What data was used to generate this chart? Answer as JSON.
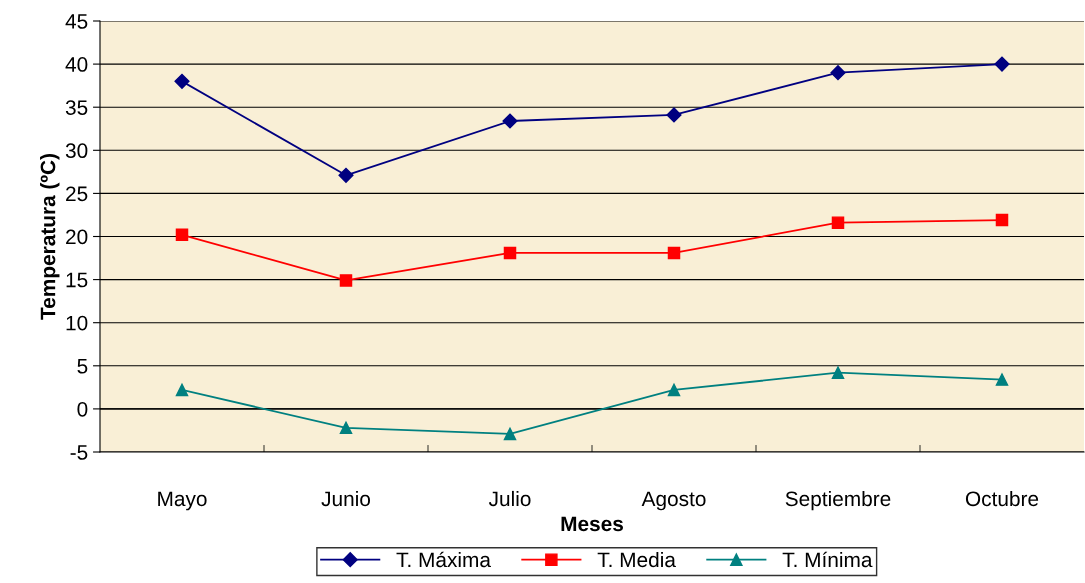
{
  "chart_data": {
    "type": "line",
    "xlabel": "Meses",
    "ylabel": "Temperatura (ºC)",
    "categories": [
      "Mayo",
      "Junio",
      "Julio",
      "Agosto",
      "Septiembre",
      "Octubre"
    ],
    "series": [
      {
        "name": "T. Máxima",
        "color": "#000080",
        "marker": "diamond",
        "values": [
          38,
          27.1,
          33.4,
          34.1,
          39,
          40
        ]
      },
      {
        "name": "T. Media",
        "color": "#ff0000",
        "marker": "square",
        "values": [
          20.2,
          14.9,
          18.1,
          18.1,
          21.6,
          21.9
        ]
      },
      {
        "name": "T. Mínima",
        "color": "#008080",
        "marker": "triangle",
        "values": [
          2.2,
          -2.2,
          -2.9,
          2.2,
          4.2,
          3.4
        ]
      }
    ],
    "ylim": [
      -5,
      45
    ],
    "yticks": [
      -5,
      0,
      5,
      10,
      15,
      20,
      25,
      30,
      35,
      40,
      45
    ],
    "grid": "y",
    "legend": "bottom"
  }
}
